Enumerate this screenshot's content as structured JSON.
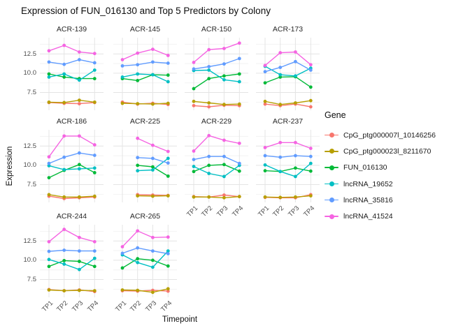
{
  "title": "Expression of FUN_016130 and Top 5 Predictors by Colony",
  "axes": {
    "x_title": "Timepoint",
    "y_title": "Expression",
    "x_ticks": [
      "TP1",
      "TP2",
      "TP3",
      "TP4"
    ],
    "y_ticks": [
      "12.5",
      "10.0",
      "7.5"
    ]
  },
  "legend": {
    "title": "Gene",
    "entries": [
      {
        "label": "CpG_ptg000007l_10146256",
        "color": "#F8766D"
      },
      {
        "label": "CpG_ptg000023l_8211670",
        "color": "#B79F00"
      },
      {
        "label": "FUN_016130",
        "color": "#00BA38"
      },
      {
        "label": "lncRNA_19652",
        "color": "#00BFC4"
      },
      {
        "label": "lncRNA_35816",
        "color": "#619CFF"
      },
      {
        "label": "lncRNA_41524",
        "color": "#F564E2"
      }
    ]
  },
  "chart_data": {
    "type": "line",
    "x": [
      "TP1",
      "TP2",
      "TP3",
      "TP4"
    ],
    "ylim": [
      5.2,
      14.6
    ],
    "y_gridlines_major": [
      7.5,
      10.0,
      12.5
    ],
    "y_gridlines_minor": [
      6.25,
      8.75,
      11.25,
      13.75
    ],
    "grid": true,
    "legend_position": "right",
    "facets": [
      {
        "colony": "ACR-139",
        "series": {
          "CpG_ptg000007l_10146256": [
            6.2,
            6.1,
            6.05,
            6.2
          ],
          "CpG_ptg000023l_8211670": [
            6.25,
            6.2,
            6.5,
            6.25
          ],
          "FUN_016130": [
            9.9,
            9.5,
            9.3,
            9.3
          ],
          "lncRNA_19652": [
            9.5,
            9.9,
            9.1,
            10.4
          ],
          "lncRNA_35816": [
            11.45,
            11.15,
            11.75,
            11.35
          ],
          "lncRNA_41524": [
            12.9,
            13.6,
            12.75,
            12.55
          ]
        }
      },
      {
        "colony": "ACR-145",
        "series": {
          "CpG_ptg000007l_10146256": [
            6.25,
            6.0,
            6.1,
            5.95
          ],
          "CpG_ptg000023l_8211670": [
            6.1,
            6.05,
            6.0,
            6.1
          ],
          "FUN_016130": [
            9.3,
            9.05,
            9.8,
            9.75
          ],
          "lncRNA_19652": [
            9.5,
            9.9,
            9.8,
            8.9
          ],
          "lncRNA_35816": [
            10.95,
            11.1,
            11.45,
            11.3
          ],
          "lncRNA_41524": [
            11.75,
            12.6,
            13.1,
            12.3
          ]
        }
      },
      {
        "colony": "ACR-150",
        "series": {
          "CpG_ptg000007l_10146256": [
            5.8,
            5.65,
            5.85,
            5.8
          ],
          "CpG_ptg000023l_8211670": [
            6.35,
            6.15,
            5.95,
            6.0
          ],
          "FUN_016130": [
            8.0,
            9.3,
            9.65,
            9.9
          ],
          "lncRNA_19652": [
            10.35,
            10.4,
            9.15,
            8.9
          ],
          "lncRNA_35816": [
            10.55,
            10.85,
            11.2,
            11.9
          ],
          "lncRNA_41524": [
            11.4,
            13.05,
            13.2,
            13.9
          ]
        }
      },
      {
        "colony": "ACR-173",
        "series": {
          "CpG_ptg000007l_10146256": [
            6.0,
            5.8,
            6.0,
            5.65
          ],
          "CpG_ptg000023l_8211670": [
            6.35,
            5.95,
            6.15,
            6.45
          ],
          "FUN_016130": [
            8.75,
            9.5,
            9.55,
            8.2
          ],
          "lncRNA_19652": [
            10.9,
            9.8,
            9.65,
            10.65
          ],
          "lncRNA_35816": [
            10.2,
            10.75,
            11.5,
            10.4
          ],
          "lncRNA_41524": [
            11.0,
            12.65,
            12.75,
            11.1
          ]
        }
      },
      {
        "colony": "ACR-186",
        "series": {
          "CpG_ptg000007l_10146256": [
            6.0,
            5.7,
            5.8,
            5.9
          ],
          "CpG_ptg000023l_8211670": [
            6.2,
            5.9,
            5.9,
            6.0
          ],
          "FUN_016130": [
            8.4,
            9.35,
            10.1,
            9.05
          ],
          "lncRNA_19652": [
            9.95,
            9.45,
            9.55,
            9.65
          ],
          "lncRNA_35816": [
            10.25,
            11.05,
            11.6,
            11.3
          ],
          "lncRNA_41524": [
            11.1,
            13.8,
            13.8,
            12.65
          ]
        }
      },
      {
        "colony": "ACR-225",
        "series": {
          "CpG_ptg000007l_10146256": [
            null,
            6.2,
            6.15,
            6.1
          ],
          "CpG_ptg000023l_8211670": [
            null,
            6.05,
            6.0,
            6.05
          ],
          "FUN_016130": [
            null,
            10.0,
            9.8,
            8.6
          ],
          "lncRNA_19652": [
            null,
            9.3,
            9.4,
            10.9
          ],
          "lncRNA_35816": [
            null,
            11.0,
            10.9,
            10.3
          ],
          "lncRNA_41524": [
            null,
            13.5,
            12.6,
            11.8
          ]
        }
      },
      {
        "colony": "ACR-229",
        "series": {
          "CpG_ptg000007l_10146256": [
            5.95,
            5.9,
            6.15,
            5.95
          ],
          "CpG_ptg000023l_8211670": [
            5.9,
            5.9,
            5.8,
            5.95
          ],
          "FUN_016130": [
            9.2,
            10.0,
            10.1,
            9.25
          ],
          "lncRNA_19652": [
            9.85,
            8.95,
            8.55,
            10.0
          ],
          "lncRNA_35816": [
            10.75,
            11.15,
            11.15,
            10.25
          ],
          "lncRNA_41524": [
            11.85,
            13.85,
            13.25,
            12.85
          ]
        }
      },
      {
        "colony": "ACR-237",
        "series": {
          "CpG_ptg000007l_10146256": [
            5.85,
            5.8,
            5.8,
            6.2
          ],
          "CpG_ptg000023l_8211670": [
            5.9,
            5.85,
            5.9,
            6.05
          ],
          "FUN_016130": [
            9.3,
            9.2,
            9.65,
            9.25
          ],
          "lncRNA_19652": [
            10.05,
            9.2,
            8.55,
            10.25
          ],
          "lncRNA_35816": [
            11.25,
            11.05,
            11.25,
            11.15
          ],
          "lncRNA_41524": [
            12.3,
            12.95,
            12.95,
            12.2
          ]
        }
      },
      {
        "colony": "ACR-244",
        "series": {
          "CpG_ptg000007l_10146256": [
            6.2,
            6.05,
            6.15,
            5.95
          ],
          "CpG_ptg000023l_8211670": [
            6.15,
            6.05,
            6.1,
            6.05
          ],
          "FUN_016130": [
            9.2,
            9.95,
            9.85,
            9.2
          ],
          "lncRNA_19652": [
            10.1,
            9.5,
            8.8,
            10.25
          ],
          "lncRNA_35816": [
            11.15,
            11.3,
            11.2,
            11.2
          ],
          "lncRNA_41524": [
            12.4,
            14.0,
            12.95,
            12.4
          ]
        }
      },
      {
        "colony": "ACR-265",
        "series": {
          "CpG_ptg000007l_10146256": [
            6.05,
            6.0,
            6.1,
            6.0
          ],
          "CpG_ptg000023l_8211670": [
            6.15,
            6.1,
            5.85,
            6.3
          ],
          "FUN_016130": [
            9.0,
            10.2,
            10.0,
            9.25
          ],
          "lncRNA_19652": [
            10.7,
            9.7,
            9.1,
            11.2
          ],
          "lncRNA_35816": [
            10.9,
            11.6,
            11.2,
            10.85
          ],
          "lncRNA_41524": [
            11.75,
            13.8,
            12.95,
            13.0
          ]
        }
      }
    ]
  }
}
